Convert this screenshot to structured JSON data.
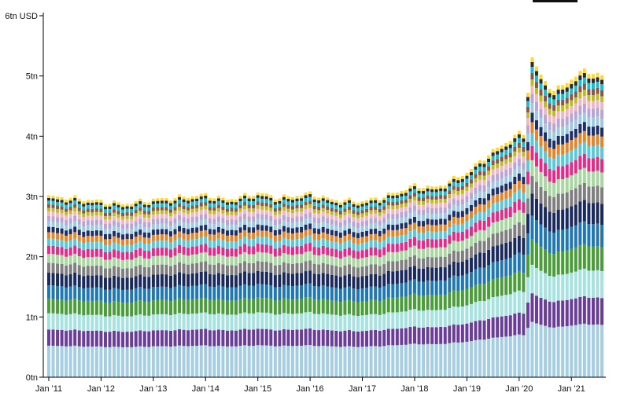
{
  "chart_data": {
    "type": "bar",
    "stacked": true,
    "title": "",
    "xlabel": "",
    "ylabel": "",
    "y_unit_label": "6tn USD",
    "ylim": [
      0,
      6
    ],
    "y_ticks": [
      {
        "value": 0,
        "label": "0tn"
      },
      {
        "value": 1,
        "label": "1tn"
      },
      {
        "value": 2,
        "label": "2tn"
      },
      {
        "value": 3,
        "label": "3tn"
      },
      {
        "value": 4,
        "label": "4tn"
      },
      {
        "value": 5,
        "label": "5tn"
      },
      {
        "value": 6,
        "label": "6tn USD"
      }
    ],
    "x_ticks": [
      "Jan '11",
      "Jan '12",
      "Jan '13",
      "Jan '14",
      "Jan '15",
      "Jan '16",
      "Jan '17",
      "Jan '18",
      "Jan '19",
      "Jan '20",
      "Jan '21"
    ],
    "x_start": "2011-01",
    "x_end": "2021-08",
    "frequency": "monthly",
    "totals_anchor": {
      "2011-01": 3.0,
      "2011-06": 2.98,
      "2012-01": 2.92,
      "2012-06": 2.88,
      "2013-01": 2.95,
      "2013-06": 2.98,
      "2014-01": 3.03,
      "2014-06": 2.95,
      "2015-01": 3.06,
      "2015-06": 2.98,
      "2016-01": 3.05,
      "2016-06": 2.95,
      "2017-01": 2.92,
      "2017-06": 3.0,
      "2018-01": 3.18,
      "2018-06": 3.15,
      "2019-01": 3.4,
      "2019-06": 3.7,
      "2020-01": 4.05,
      "2020-02": 4.05,
      "2020-03": 4.75,
      "2020-04": 5.3,
      "2020-06": 5.0,
      "2020-09": 4.75,
      "2021-01": 4.95,
      "2021-04": 5.1,
      "2021-08": 5.0
    },
    "series": [
      {
        "color": "#a6cee3",
        "share": 0.175
      },
      {
        "color": "#6a3d9a",
        "share": 0.09
      },
      {
        "color": "#a6e3e0",
        "share": 0.09
      },
      {
        "color": "#4a9e3a",
        "share": 0.08
      },
      {
        "color": "#1f78b4",
        "share": 0.075
      },
      {
        "color": "#1a2a5e",
        "share": 0.07
      },
      {
        "color": "#7f7f7f",
        "share": 0.055
      },
      {
        "color": "#a9d7a1",
        "share": 0.05
      },
      {
        "color": "#e7298a",
        "share": 0.045
      },
      {
        "color": "#5ac8d8",
        "share": 0.04
      },
      {
        "color": "#e6842a",
        "share": 0.035
      },
      {
        "color": "#1b2f6b",
        "share": 0.03
      },
      {
        "color": "#9ecae1",
        "share": 0.03
      },
      {
        "color": "#b7a5d6",
        "share": 0.03
      },
      {
        "color": "#f2b6c6",
        "share": 0.025
      },
      {
        "color": "#bcbd22",
        "share": 0.02
      },
      {
        "color": "#8c564b",
        "share": 0.02
      },
      {
        "color": "#17becf",
        "share": 0.02
      },
      {
        "color": "#2b2b2b",
        "share": 0.015
      },
      {
        "color": "#ffd92f",
        "share": 0.015
      }
    ]
  }
}
